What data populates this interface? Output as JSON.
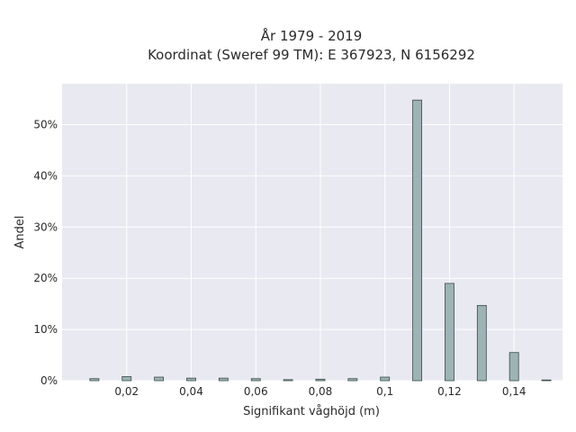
{
  "chart_data": {
    "type": "bar",
    "title_lines": [
      "År 1979 - 2019",
      "Koordinat (Sweref 99 TM): E 367923, N 6156292"
    ],
    "xlabel": "Signifikant våghöjd (m)",
    "ylabel": "Andel",
    "xlim": [
      0.0,
      0.155
    ],
    "ylim": [
      0,
      0.58
    ],
    "x_ticks": [
      0.02,
      0.04,
      0.06,
      0.08,
      0.1,
      0.12,
      0.14
    ],
    "x_tick_labels": [
      "0,02",
      "0,04",
      "0,06",
      "0,08",
      "0,1",
      "0,12",
      "0,14"
    ],
    "y_ticks": [
      0,
      0.1,
      0.2,
      0.3,
      0.4,
      0.5
    ],
    "y_tick_labels": [
      "0%",
      "10%",
      "20%",
      "30%",
      "40%",
      "50%"
    ],
    "bar_width": 0.0028,
    "x": [
      0.01,
      0.02,
      0.03,
      0.04,
      0.05,
      0.06,
      0.07,
      0.08,
      0.09,
      0.1,
      0.11,
      0.12,
      0.13,
      0.14,
      0.15
    ],
    "values": [
      0.004,
      0.008,
      0.007,
      0.005,
      0.005,
      0.004,
      0.002,
      0.003,
      0.004,
      0.007,
      0.548,
      0.19,
      0.147,
      0.055,
      0.001
    ],
    "grid": true,
    "colors": {
      "bar_fill": "#9db3b5",
      "bar_stroke": "#3b4b4c",
      "plot_bg": "#e9e9f1",
      "grid": "#ffffff"
    }
  }
}
